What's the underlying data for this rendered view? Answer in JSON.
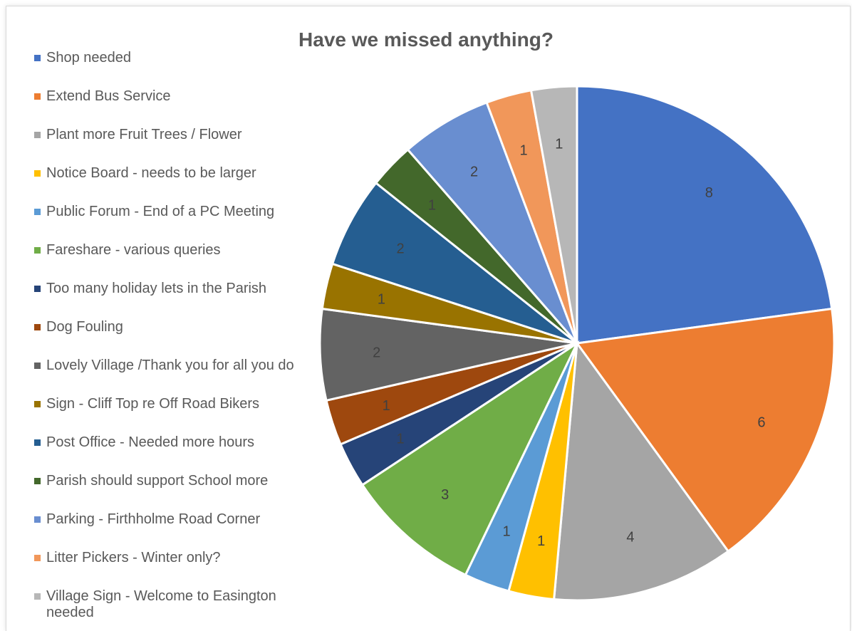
{
  "chart_data": {
    "type": "pie",
    "title": "Have we missed anything?",
    "legend_position": "left",
    "categories": [
      "Shop needed",
      "Extend Bus Service",
      "Plant more Fruit Trees / Flower",
      "Notice Board - needs to be larger",
      "Public Forum - End of a PC Meeting",
      "Fareshare - various queries",
      "Too many holiday lets in the Parish",
      "Dog Fouling",
      "Lovely Village /Thank you for all you do",
      "Sign - Cliff Top re Off Road Bikers",
      "Post Office - Needed more hours",
      "Parish should support School more",
      "Parking - Firthholme Road Corner",
      "Litter Pickers - Winter only?",
      "Village Sign - Welcome to Easington needed"
    ],
    "values": [
      8,
      6,
      4,
      1,
      1,
      3,
      1,
      1,
      2,
      1,
      2,
      1,
      2,
      1,
      1
    ],
    "colors": [
      "#4472c4",
      "#ed7d31",
      "#a5a5a5",
      "#ffc000",
      "#5b9bd5",
      "#70ad47",
      "#264478",
      "#9e480e",
      "#636363",
      "#997300",
      "#255e91",
      "#43682b",
      "#698ed0",
      "#f1975a",
      "#b7b7b7"
    ],
    "data_labels": [
      "8",
      "6",
      "4",
      "1",
      "1",
      "3",
      "1",
      "1",
      "2",
      "1",
      "2",
      "1",
      "2",
      "1",
      "1"
    ]
  }
}
